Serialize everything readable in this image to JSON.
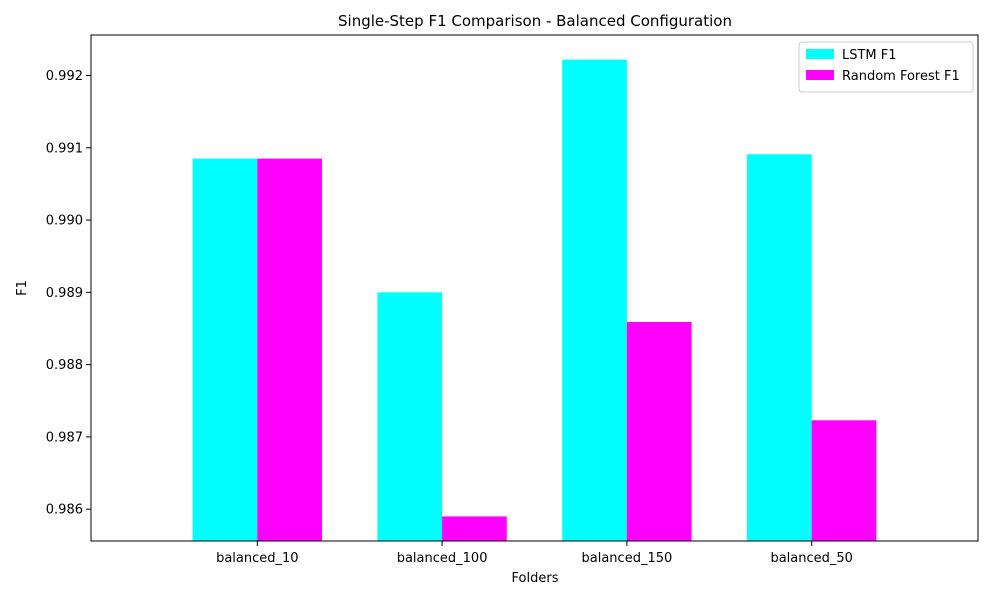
{
  "chart_data": {
    "type": "bar",
    "title": "Single-Step F1 Comparison - Balanced Configuration",
    "xlabel": "Folders",
    "ylabel": "F1",
    "categories": [
      "balanced_10",
      "balanced_100",
      "balanced_150",
      "balanced_50"
    ],
    "series": [
      {
        "name": "LSTM F1",
        "color": "#00ffff",
        "values": [
          0.99085,
          0.989,
          0.99222,
          0.99091
        ]
      },
      {
        "name": "Random Forest F1",
        "color": "#ff00ff",
        "values": [
          0.99085,
          0.9859,
          0.98859,
          0.98723
        ]
      }
    ],
    "ylim": [
      0.98556,
      0.99256
    ],
    "yticks": [
      0.986,
      0.987,
      0.988,
      0.989,
      0.99,
      0.991,
      0.992
    ],
    "ytick_labels": [
      "0.986",
      "0.987",
      "0.988",
      "0.989",
      "0.990",
      "0.991",
      "0.992"
    ],
    "grid": false,
    "legend_position": "top-right"
  }
}
